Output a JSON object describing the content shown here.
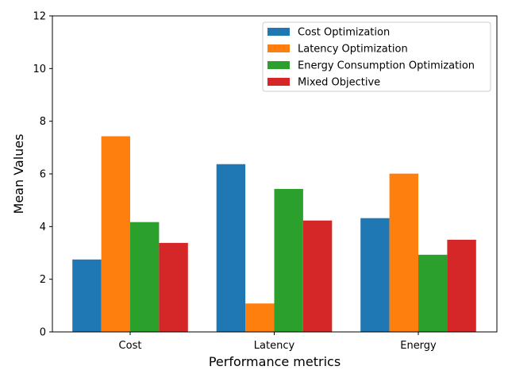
{
  "chart_data": {
    "type": "bar",
    "title": "",
    "xlabel": "Performance metrics",
    "ylabel": "Mean Values",
    "ylim": [
      0,
      12
    ],
    "yticks": [
      0,
      2,
      4,
      6,
      8,
      10,
      12
    ],
    "categories": [
      "Cost",
      "Latency",
      "Energy"
    ],
    "legend_position": "top-right",
    "grid": false,
    "series": [
      {
        "name": "Cost Optimization",
        "color": "#1f77b4",
        "values": [
          2.75,
          6.37,
          4.32
        ]
      },
      {
        "name": "Latency Optimization",
        "color": "#ff7f0e",
        "values": [
          7.43,
          1.08,
          6.01
        ]
      },
      {
        "name": "Energy Consumption Optimization",
        "color": "#2ca02c",
        "values": [
          4.17,
          5.43,
          2.93
        ]
      },
      {
        "name": "Mixed Objective",
        "color": "#d62728",
        "values": [
          3.38,
          4.23,
          3.5
        ]
      }
    ]
  }
}
